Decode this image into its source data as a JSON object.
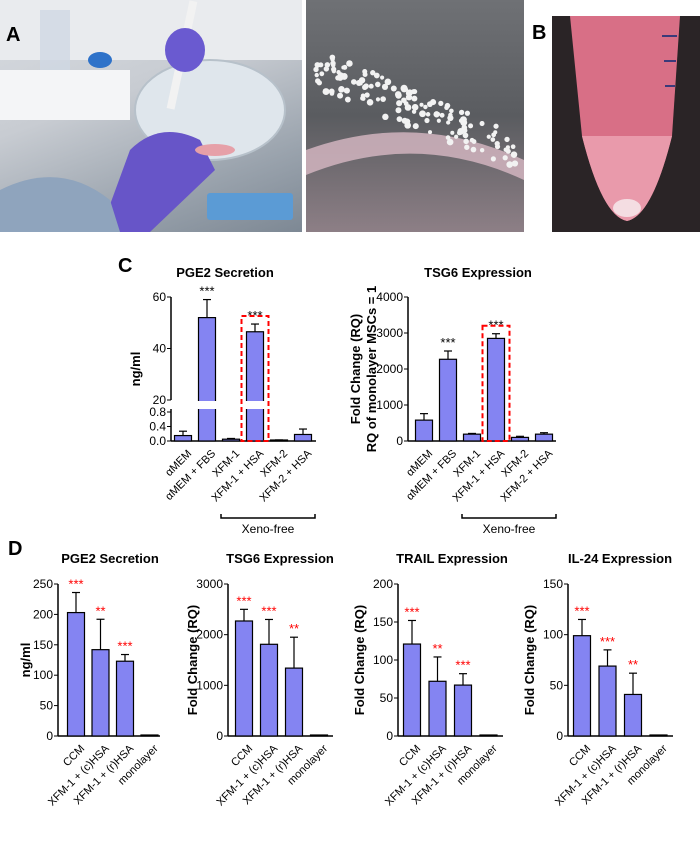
{
  "panels": {
    "a": "A",
    "b": "B",
    "c": "C",
    "d": "D"
  },
  "colors": {
    "bar": "#8484f2",
    "bar_outline": "#000000",
    "sig_black": "#000000",
    "sig_red": "#ff0000",
    "highlight_box": "#ff0000",
    "photo_label_box": "#5b9bd5"
  },
  "chart_data": [
    {
      "type": "bar",
      "panel": "C",
      "title": "PGE2 Secretion",
      "ylabel": "ng/ml",
      "xlabel": "",
      "categories": [
        "αMEM",
        "αMEM + FBS",
        "XFM-1",
        "XFM-1 + HSA",
        "XFM-2",
        "XFM-2 + HSA"
      ],
      "values": [
        0.15,
        52,
        0.05,
        46.5,
        0.02,
        0.18
      ],
      "error_upper": [
        0.27,
        59,
        0.07,
        49.5,
        0.03,
        0.33
      ],
      "significance": [
        "",
        "***",
        "",
        "***",
        "",
        ""
      ],
      "yticks_upper": [
        "20",
        "40",
        "60"
      ],
      "yticks_lower": [
        "0.0",
        "0.4",
        "0.8"
      ],
      "ylim_upper": [
        20,
        60
      ],
      "ylim_lower": [
        0,
        0.8
      ],
      "broken_axis": true,
      "highlighted_category": "XFM-1 + HSA",
      "group_bracket": {
        "label": "Xeno-free",
        "from": "XFM-1",
        "to": "XFM-2 + HSA"
      }
    },
    {
      "type": "bar",
      "panel": "C",
      "title": "TSG6 Expression",
      "ylabel": "Fold Change (RQ)",
      "ylabel2": "RQ of monolayer MSCs = 1",
      "xlabel": "",
      "categories": [
        "αMEM",
        "αMEM + FBS",
        "XFM-1",
        "XFM-1 + HSA",
        "XFM-2",
        "XFM-2 + HSA"
      ],
      "values": [
        580,
        2270,
        190,
        2850,
        100,
        190
      ],
      "error_upper": [
        760,
        2500,
        210,
        2980,
        130,
        230
      ],
      "significance": [
        "",
        "***",
        "",
        "***",
        "",
        ""
      ],
      "yticks": [
        "0",
        "1000",
        "2000",
        "3000",
        "4000"
      ],
      "ylim": [
        0,
        4000
      ],
      "highlighted_category": "XFM-1 + HSA",
      "group_bracket": {
        "label": "Xeno-free",
        "from": "XFM-1",
        "to": "XFM-2 + HSA"
      }
    },
    {
      "type": "bar",
      "panel": "D",
      "title": "PGE2 Secretion",
      "ylabel": "ng/ml",
      "xlabel": "",
      "categories": [
        "CCM",
        "XFM-1 + (c)HSA",
        "XFM-1 + (r)HSA",
        "monolayer"
      ],
      "values": [
        203,
        142,
        123,
        0
      ],
      "error_upper": [
        236,
        192,
        134,
        0
      ],
      "significance": [
        "***",
        "**",
        "***",
        ""
      ],
      "yticks": [
        "0",
        "50",
        "100",
        "150",
        "200",
        "250"
      ],
      "ylim": [
        0,
        250
      ]
    },
    {
      "type": "bar",
      "panel": "D",
      "title": "TSG6 Expression",
      "ylabel": "Fold Change (RQ)",
      "xlabel": "",
      "categories": [
        "CCM",
        "XFM-1 + (c)HSA",
        "XFM-1 + (r)HSA",
        "monolayer"
      ],
      "values": [
        2270,
        1810,
        1340,
        1
      ],
      "error_upper": [
        2500,
        2300,
        1950,
        1
      ],
      "significance": [
        "***",
        "***",
        "**",
        ""
      ],
      "yticks": [
        "0",
        "1000",
        "2000",
        "3000"
      ],
      "ylim": [
        0,
        3000
      ]
    },
    {
      "type": "bar",
      "panel": "D",
      "title": "TRAIL Expression",
      "ylabel": "Fold Change (RQ)",
      "xlabel": "",
      "categories": [
        "CCM",
        "XFM-1 + (c)HSA",
        "XFM-1 + (r)HSA",
        "monolayer"
      ],
      "values": [
        121,
        72,
        67,
        1
      ],
      "error_upper": [
        152,
        104,
        82,
        1
      ],
      "significance": [
        "***",
        "**",
        "***",
        ""
      ],
      "yticks": [
        "0",
        "50",
        "100",
        "150",
        "200"
      ],
      "ylim": [
        0,
        200
      ]
    },
    {
      "type": "bar",
      "panel": "D",
      "title": "IL-24 Expression",
      "ylabel": "Fold Change (RQ)",
      "xlabel": "",
      "categories": [
        "CCM",
        "XFM-1 + (c)HSA",
        "XFM-1 + (r)HSA",
        "monolayer"
      ],
      "values": [
        99,
        69,
        41,
        1
      ],
      "error_upper": [
        115,
        85,
        62,
        1
      ],
      "significance": [
        "***",
        "***",
        "**",
        ""
      ],
      "yticks": [
        "0",
        "50",
        "100",
        "150"
      ],
      "ylim": [
        0,
        150
      ]
    }
  ]
}
